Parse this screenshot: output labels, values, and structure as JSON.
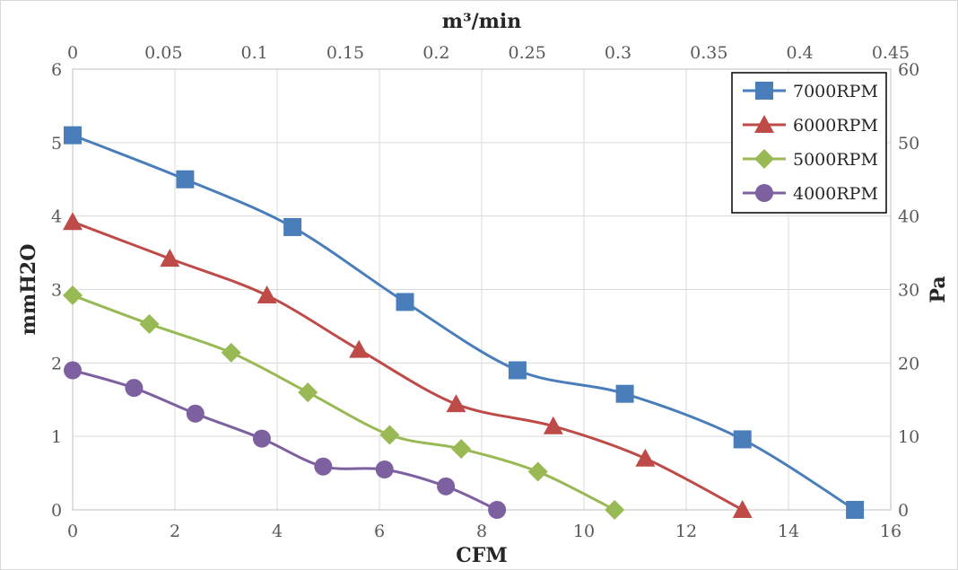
{
  "chart_data": {
    "type": "line",
    "title": "",
    "xlabel": "CFM",
    "x2label": "m³/min",
    "ylabel": "mmH2O",
    "y2label": "Pa",
    "xlim": [
      0,
      16
    ],
    "x2lim": [
      0,
      0.45
    ],
    "ylim": [
      0,
      6
    ],
    "y2lim": [
      0,
      60
    ],
    "xticks": [
      "0",
      "2",
      "4",
      "6",
      "8",
      "10",
      "12",
      "14",
      "16"
    ],
    "x2ticks": [
      "0",
      "0.05",
      "0.1",
      "0.15",
      "0.2",
      "0.25",
      "0.3",
      "0.35",
      "0.4",
      "0.45"
    ],
    "yticks": [
      "0",
      "1",
      "2",
      "3",
      "4",
      "5",
      "6"
    ],
    "y2ticks": [
      "0",
      "10",
      "20",
      "30",
      "40",
      "50",
      "60"
    ],
    "grid": true,
    "legend_position": "top-right",
    "series": [
      {
        "name": "7000RPM",
        "color": "#4a7ebb",
        "marker": "square",
        "x": [
          0,
          2.2,
          4.3,
          6.5,
          8.7,
          10.8,
          13.1,
          15.3
        ],
        "y": [
          5.1,
          4.5,
          3.85,
          2.83,
          1.9,
          1.58,
          0.96,
          0
        ]
      },
      {
        "name": "6000RPM",
        "color": "#be4b48",
        "marker": "triangle",
        "x": [
          0,
          1.9,
          3.8,
          5.6,
          7.5,
          9.4,
          11.2,
          13.1
        ],
        "y": [
          3.92,
          3.42,
          2.92,
          2.18,
          1.44,
          1.14,
          0.7,
          0
        ]
      },
      {
        "name": "5000RPM",
        "color": "#98b954",
        "marker": "diamond",
        "x": [
          0,
          1.5,
          3.1,
          4.6,
          6.2,
          7.6,
          9.1,
          10.6
        ],
        "y": [
          2.92,
          2.53,
          2.14,
          1.6,
          1.02,
          0.83,
          0.52,
          0
        ]
      },
      {
        "name": "4000RPM",
        "color": "#7d60a0",
        "marker": "circle",
        "x": [
          0,
          1.2,
          2.4,
          3.7,
          4.9,
          6.1,
          7.3,
          8.3
        ],
        "y": [
          1.9,
          1.66,
          1.31,
          0.97,
          0.59,
          0.55,
          0.32,
          0
        ]
      }
    ]
  }
}
